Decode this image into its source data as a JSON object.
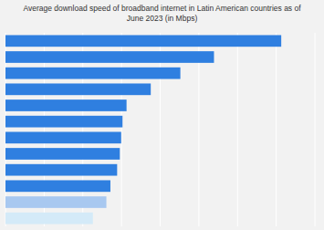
{
  "chart_data": {
    "type": "bar",
    "orientation": "horizontal",
    "title": "Average download speed of broadband internet in Latin American countries as of\nJune 2023 (in Mbps)",
    "categories": [
      null,
      null,
      null,
      null,
      null,
      null,
      null,
      null,
      null,
      null,
      null,
      null
    ],
    "values": [
      205,
      155,
      130,
      108,
      90,
      87,
      86,
      85,
      83,
      78,
      75,
      65
    ],
    "colors": [
      "#2f7fe0",
      "#2f7fe0",
      "#2f7fe0",
      "#2f7fe0",
      "#2f7fe0",
      "#2f7fe0",
      "#2f7fe0",
      "#2f7fe0",
      "#2f7fe0",
      "#2f7fe0",
      "#a8c8f0",
      "#d4eaf8"
    ],
    "xlim": [
      0,
      230
    ],
    "xticks": [
      0,
      28.75,
      57.5,
      86.25,
      115,
      143.75,
      172.5,
      201.25,
      230
    ],
    "grid": true,
    "tick_labels": false
  }
}
